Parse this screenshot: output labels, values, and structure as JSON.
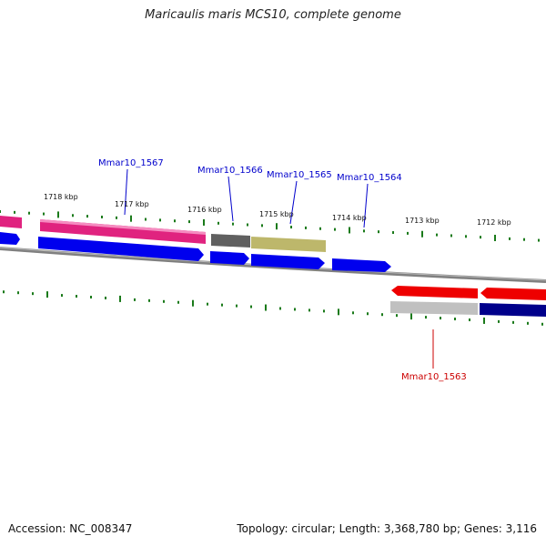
{
  "title": "Maricaulis maris MCS10, complete genome",
  "footer": {
    "accession": "Accession: NC_008347",
    "topology": "Topology: circular; Length: 3,368,780 bp; Genes: 3,116"
  },
  "colors": {
    "pink": "#e0237f",
    "blue": "#0000ee",
    "dark_gray": "#606060",
    "olive": "#bdb76b",
    "red": "#ee0000",
    "light_gray": "#c0c0c0",
    "navy": "#00008b",
    "tick_green": "#1a7a1a",
    "backbone": "#808080",
    "label_blue": "#0000cc",
    "label_red": "#cc0000"
  },
  "ticks": [
    {
      "label": "1718 kbp"
    },
    {
      "label": "1717 kbp"
    },
    {
      "label": "1716 kbp"
    },
    {
      "label": "1715 kbp"
    },
    {
      "label": "1714 kbp"
    },
    {
      "label": "1713 kbp"
    },
    {
      "label": "1712 kbp"
    }
  ],
  "gene_labels": [
    {
      "text": "Mmar10_1567"
    },
    {
      "text": "Mmar10_1566"
    },
    {
      "text": "Mmar10_1565"
    },
    {
      "text": "Mmar10_1564"
    },
    {
      "text": "Mmar10_1563"
    }
  ]
}
